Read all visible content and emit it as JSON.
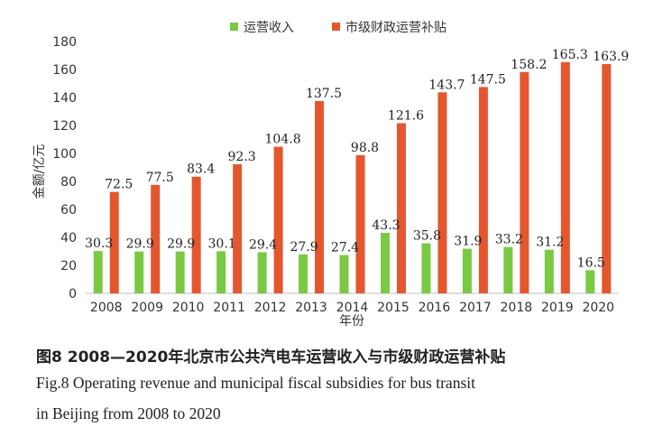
{
  "chart_data": {
    "type": "bar",
    "categories": [
      "2008",
      "2009",
      "2010",
      "2011",
      "2012",
      "2013",
      "2014",
      "2015",
      "2016",
      "2017",
      "2018",
      "2019",
      "2020"
    ],
    "series": [
      {
        "name": "运营收入",
        "color": "#7ac943",
        "values": [
          30.3,
          29.9,
          29.9,
          30.1,
          29.4,
          27.9,
          27.4,
          43.3,
          35.8,
          31.9,
          33.2,
          31.2,
          16.5
        ]
      },
      {
        "name": "市级财政运营补贴",
        "color": "#e4572e",
        "values": [
          72.5,
          77.5,
          83.4,
          92.3,
          104.8,
          137.5,
          98.8,
          121.6,
          143.7,
          147.5,
          158.2,
          165.3,
          163.9
        ]
      }
    ],
    "xlabel": "年份",
    "ylabel": "金额/亿元",
    "ylim": [
      0,
      180
    ],
    "yticks": [
      0,
      20,
      40,
      60,
      80,
      100,
      120,
      140,
      160,
      180
    ],
    "grid": false,
    "legend": "top-center"
  },
  "caption": {
    "cn": "图8  2008—2020年北京市公共汽电车运营收入与市级财政运营补贴",
    "en_line1": "Fig.8  Operating revenue and municipal fiscal subsidies for bus transit",
    "en_line2": "in Beijing from 2008 to 2020"
  }
}
